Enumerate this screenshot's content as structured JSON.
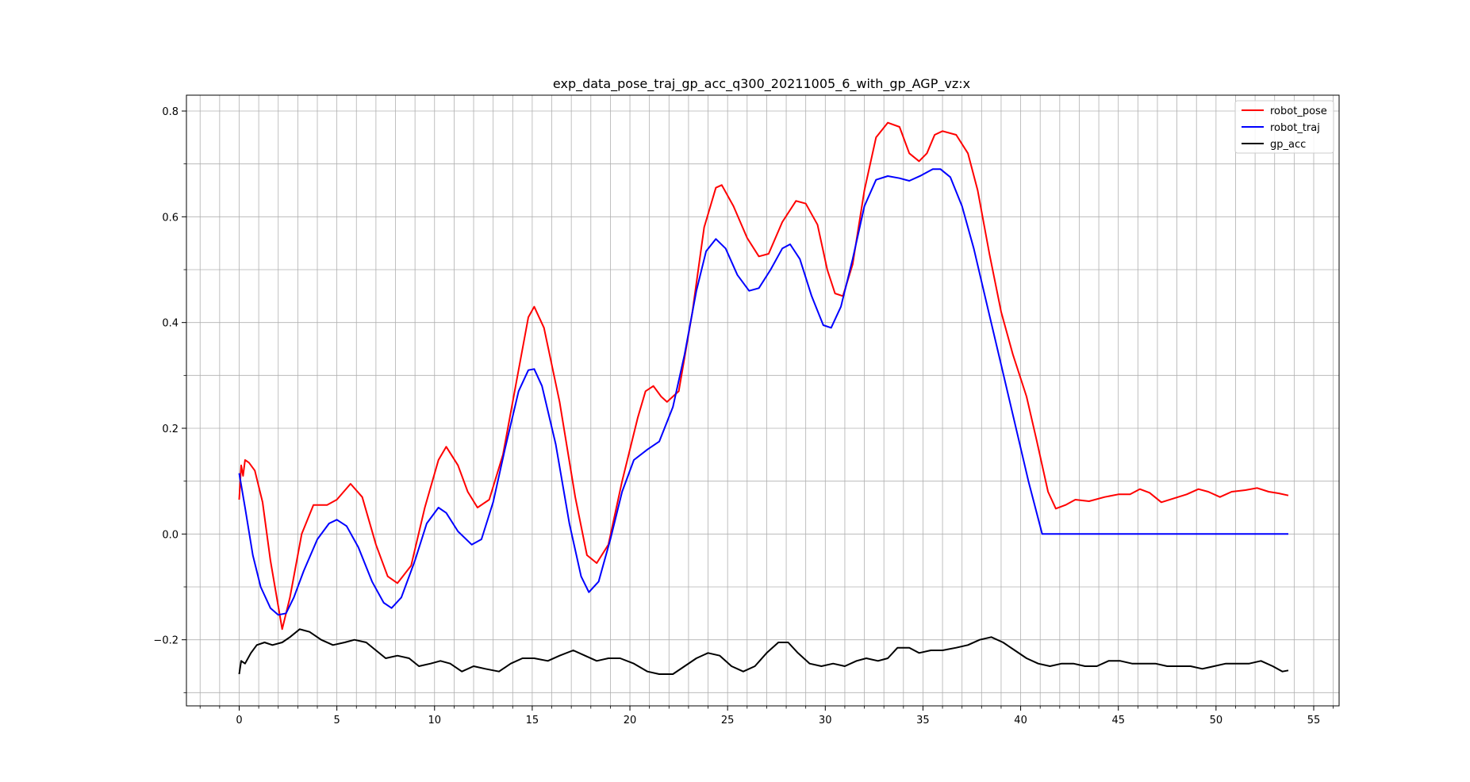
{
  "chart_data": {
    "type": "line",
    "title": "exp_data_pose_traj_gp_acc_q300_20211005_6_with_gp_AGP_vz:x",
    "xlabel": "",
    "ylabel": "",
    "xlim": [
      -2.7,
      56.3
    ],
    "ylim": [
      -0.325,
      0.83
    ],
    "x_ticks": [
      0,
      5,
      10,
      15,
      20,
      25,
      30,
      35,
      40,
      45,
      50,
      55
    ],
    "x_tick_labels": [
      "0",
      "5",
      "10",
      "15",
      "20",
      "25",
      "30",
      "35",
      "40",
      "45",
      "50",
      "55"
    ],
    "x_minor_ticks": [
      -2,
      -1,
      1,
      2,
      3,
      4,
      6,
      7,
      8,
      9,
      11,
      12,
      13,
      14,
      16,
      17,
      18,
      19,
      21,
      22,
      23,
      24,
      26,
      27,
      28,
      29,
      31,
      32,
      33,
      34,
      36,
      37,
      38,
      39,
      41,
      42,
      43,
      44,
      46,
      47,
      48,
      49,
      51,
      52,
      53,
      54,
      56
    ],
    "y_ticks": [
      -0.2,
      0.0,
      0.2,
      0.4,
      0.6,
      0.8
    ],
    "y_tick_labels": [
      "−0.2",
      "0.0",
      "0.2",
      "0.4",
      "0.6",
      "0.8"
    ],
    "y_minor_ticks": [
      -0.3,
      -0.1,
      0.1,
      0.3,
      0.5,
      0.7
    ],
    "grid": true,
    "legend_position": "top-right",
    "series": [
      {
        "name": "robot_pose",
        "color": "#ff0000",
        "points": [
          [
            0,
            0.065
          ],
          [
            0.1,
            0.13
          ],
          [
            0.2,
            0.11
          ],
          [
            0.3,
            0.14
          ],
          [
            0.5,
            0.135
          ],
          [
            0.8,
            0.12
          ],
          [
            1.2,
            0.06
          ],
          [
            1.6,
            -0.05
          ],
          [
            2.2,
            -0.18
          ],
          [
            2.6,
            -0.12
          ],
          [
            3.2,
            0.0
          ],
          [
            3.8,
            0.055
          ],
          [
            4.5,
            0.055
          ],
          [
            5.0,
            0.065
          ],
          [
            5.7,
            0.095
          ],
          [
            6.3,
            0.07
          ],
          [
            7.0,
            -0.02
          ],
          [
            7.6,
            -0.08
          ],
          [
            8.1,
            -0.093
          ],
          [
            8.8,
            -0.06
          ],
          [
            9.5,
            0.05
          ],
          [
            10.2,
            0.14
          ],
          [
            10.6,
            0.165
          ],
          [
            11.2,
            0.13
          ],
          [
            11.7,
            0.08
          ],
          [
            12.2,
            0.05
          ],
          [
            12.8,
            0.065
          ],
          [
            13.5,
            0.15
          ],
          [
            14.2,
            0.29
          ],
          [
            14.8,
            0.41
          ],
          [
            15.1,
            0.43
          ],
          [
            15.6,
            0.39
          ],
          [
            16.4,
            0.25
          ],
          [
            17.2,
            0.07
          ],
          [
            17.8,
            -0.04
          ],
          [
            18.3,
            -0.055
          ],
          [
            18.9,
            -0.02
          ],
          [
            19.6,
            0.1
          ],
          [
            20.4,
            0.22
          ],
          [
            20.8,
            0.27
          ],
          [
            21.2,
            0.28
          ],
          [
            21.6,
            0.26
          ],
          [
            21.9,
            0.25
          ],
          [
            22.5,
            0.27
          ],
          [
            23.2,
            0.42
          ],
          [
            23.8,
            0.58
          ],
          [
            24.4,
            0.655
          ],
          [
            24.7,
            0.66
          ],
          [
            25.3,
            0.62
          ],
          [
            26.0,
            0.56
          ],
          [
            26.6,
            0.525
          ],
          [
            27.1,
            0.53
          ],
          [
            27.8,
            0.59
          ],
          [
            28.5,
            0.63
          ],
          [
            29.0,
            0.625
          ],
          [
            29.6,
            0.585
          ],
          [
            30.1,
            0.5
          ],
          [
            30.5,
            0.455
          ],
          [
            30.9,
            0.45
          ],
          [
            31.4,
            0.51
          ],
          [
            32.0,
            0.65
          ],
          [
            32.6,
            0.75
          ],
          [
            33.2,
            0.778
          ],
          [
            33.8,
            0.77
          ],
          [
            34.3,
            0.72
          ],
          [
            34.8,
            0.705
          ],
          [
            35.2,
            0.72
          ],
          [
            35.6,
            0.755
          ],
          [
            36.0,
            0.762
          ],
          [
            36.7,
            0.755
          ],
          [
            37.3,
            0.72
          ],
          [
            37.8,
            0.65
          ],
          [
            38.4,
            0.53
          ],
          [
            39.0,
            0.42
          ],
          [
            39.6,
            0.34
          ],
          [
            40.3,
            0.26
          ],
          [
            40.8,
            0.18
          ],
          [
            41.4,
            0.08
          ],
          [
            41.8,
            0.048
          ],
          [
            42.3,
            0.055
          ],
          [
            42.8,
            0.065
          ],
          [
            43.5,
            0.062
          ],
          [
            44.3,
            0.07
          ],
          [
            45.0,
            0.075
          ],
          [
            45.6,
            0.075
          ],
          [
            46.1,
            0.085
          ],
          [
            46.6,
            0.078
          ],
          [
            47.2,
            0.06
          ],
          [
            47.8,
            0.067
          ],
          [
            48.5,
            0.075
          ],
          [
            49.1,
            0.085
          ],
          [
            49.6,
            0.08
          ],
          [
            50.2,
            0.07
          ],
          [
            50.8,
            0.08
          ],
          [
            51.5,
            0.083
          ],
          [
            52.1,
            0.087
          ],
          [
            52.7,
            0.08
          ],
          [
            53.2,
            0.077
          ],
          [
            53.7,
            0.073
          ]
        ]
      },
      {
        "name": "robot_traj",
        "color": "#0000ff",
        "points": [
          [
            0,
            0.115
          ],
          [
            0.3,
            0.05
          ],
          [
            0.7,
            -0.04
          ],
          [
            1.1,
            -0.1
          ],
          [
            1.6,
            -0.14
          ],
          [
            2.0,
            -0.153
          ],
          [
            2.4,
            -0.15
          ],
          [
            2.8,
            -0.12
          ],
          [
            3.3,
            -0.07
          ],
          [
            4.0,
            -0.01
          ],
          [
            4.6,
            0.02
          ],
          [
            5.0,
            0.027
          ],
          [
            5.5,
            0.015
          ],
          [
            6.1,
            -0.025
          ],
          [
            6.8,
            -0.09
          ],
          [
            7.4,
            -0.13
          ],
          [
            7.8,
            -0.14
          ],
          [
            8.3,
            -0.12
          ],
          [
            9.0,
            -0.05
          ],
          [
            9.6,
            0.02
          ],
          [
            10.2,
            0.05
          ],
          [
            10.6,
            0.04
          ],
          [
            11.2,
            0.005
          ],
          [
            11.9,
            -0.02
          ],
          [
            12.4,
            -0.01
          ],
          [
            13.0,
            0.06
          ],
          [
            13.6,
            0.16
          ],
          [
            14.3,
            0.27
          ],
          [
            14.8,
            0.31
          ],
          [
            15.1,
            0.312
          ],
          [
            15.5,
            0.28
          ],
          [
            16.2,
            0.17
          ],
          [
            16.9,
            0.02
          ],
          [
            17.5,
            -0.08
          ],
          [
            17.9,
            -0.11
          ],
          [
            18.4,
            -0.09
          ],
          [
            19.0,
            -0.01
          ],
          [
            19.6,
            0.08
          ],
          [
            20.2,
            0.14
          ],
          [
            20.9,
            0.16
          ],
          [
            21.5,
            0.175
          ],
          [
            22.2,
            0.24
          ],
          [
            22.8,
            0.34
          ],
          [
            23.4,
            0.46
          ],
          [
            23.9,
            0.535
          ],
          [
            24.4,
            0.558
          ],
          [
            24.9,
            0.54
          ],
          [
            25.5,
            0.49
          ],
          [
            26.1,
            0.46
          ],
          [
            26.6,
            0.465
          ],
          [
            27.2,
            0.5
          ],
          [
            27.8,
            0.54
          ],
          [
            28.2,
            0.548
          ],
          [
            28.7,
            0.52
          ],
          [
            29.3,
            0.45
          ],
          [
            29.9,
            0.395
          ],
          [
            30.3,
            0.39
          ],
          [
            30.8,
            0.43
          ],
          [
            31.4,
            0.52
          ],
          [
            32.0,
            0.62
          ],
          [
            32.6,
            0.67
          ],
          [
            33.2,
            0.677
          ],
          [
            33.8,
            0.673
          ],
          [
            34.3,
            0.668
          ],
          [
            34.9,
            0.678
          ],
          [
            35.5,
            0.69
          ],
          [
            35.9,
            0.69
          ],
          [
            36.4,
            0.675
          ],
          [
            37.0,
            0.62
          ],
          [
            37.6,
            0.54
          ],
          [
            38.3,
            0.43
          ],
          [
            39.0,
            0.32
          ],
          [
            39.7,
            0.21
          ],
          [
            40.4,
            0.1
          ],
          [
            41.1,
            0.0
          ],
          [
            45.0,
            0.0
          ],
          [
            50.0,
            0.0
          ],
          [
            53.7,
            0.0
          ]
        ]
      },
      {
        "name": "gp_acc",
        "color": "#000000",
        "points": [
          [
            0,
            -0.265
          ],
          [
            0.1,
            -0.24
          ],
          [
            0.3,
            -0.245
          ],
          [
            0.6,
            -0.225
          ],
          [
            0.9,
            -0.21
          ],
          [
            1.3,
            -0.205
          ],
          [
            1.7,
            -0.21
          ],
          [
            2.2,
            -0.205
          ],
          [
            2.6,
            -0.195
          ],
          [
            3.1,
            -0.18
          ],
          [
            3.6,
            -0.185
          ],
          [
            4.2,
            -0.2
          ],
          [
            4.8,
            -0.21
          ],
          [
            5.4,
            -0.205
          ],
          [
            5.9,
            -0.2
          ],
          [
            6.5,
            -0.205
          ],
          [
            7.0,
            -0.22
          ],
          [
            7.5,
            -0.235
          ],
          [
            8.1,
            -0.23
          ],
          [
            8.7,
            -0.235
          ],
          [
            9.2,
            -0.25
          ],
          [
            9.8,
            -0.245
          ],
          [
            10.3,
            -0.24
          ],
          [
            10.8,
            -0.245
          ],
          [
            11.4,
            -0.26
          ],
          [
            12.0,
            -0.25
          ],
          [
            12.6,
            -0.255
          ],
          [
            13.3,
            -0.26
          ],
          [
            13.9,
            -0.245
          ],
          [
            14.5,
            -0.235
          ],
          [
            15.1,
            -0.235
          ],
          [
            15.8,
            -0.24
          ],
          [
            16.4,
            -0.23
          ],
          [
            17.1,
            -0.22
          ],
          [
            17.7,
            -0.23
          ],
          [
            18.3,
            -0.24
          ],
          [
            18.9,
            -0.235
          ],
          [
            19.5,
            -0.235
          ],
          [
            20.2,
            -0.245
          ],
          [
            20.9,
            -0.26
          ],
          [
            21.5,
            -0.265
          ],
          [
            22.2,
            -0.265
          ],
          [
            22.8,
            -0.25
          ],
          [
            23.4,
            -0.235
          ],
          [
            24.0,
            -0.225
          ],
          [
            24.6,
            -0.23
          ],
          [
            25.2,
            -0.25
          ],
          [
            25.8,
            -0.26
          ],
          [
            26.4,
            -0.25
          ],
          [
            27.0,
            -0.225
          ],
          [
            27.6,
            -0.205
          ],
          [
            28.1,
            -0.205
          ],
          [
            28.6,
            -0.225
          ],
          [
            29.2,
            -0.245
          ],
          [
            29.8,
            -0.25
          ],
          [
            30.4,
            -0.245
          ],
          [
            31.0,
            -0.25
          ],
          [
            31.6,
            -0.24
          ],
          [
            32.1,
            -0.235
          ],
          [
            32.7,
            -0.24
          ],
          [
            33.2,
            -0.235
          ],
          [
            33.7,
            -0.215
          ],
          [
            34.3,
            -0.215
          ],
          [
            34.8,
            -0.225
          ],
          [
            35.4,
            -0.22
          ],
          [
            36.0,
            -0.22
          ],
          [
            36.7,
            -0.215
          ],
          [
            37.3,
            -0.21
          ],
          [
            37.9,
            -0.2
          ],
          [
            38.5,
            -0.195
          ],
          [
            39.1,
            -0.205
          ],
          [
            39.7,
            -0.22
          ],
          [
            40.3,
            -0.235
          ],
          [
            40.9,
            -0.245
          ],
          [
            41.5,
            -0.25
          ],
          [
            42.1,
            -0.245
          ],
          [
            42.7,
            -0.245
          ],
          [
            43.3,
            -0.25
          ],
          [
            43.9,
            -0.25
          ],
          [
            44.5,
            -0.24
          ],
          [
            45.1,
            -0.24
          ],
          [
            45.7,
            -0.245
          ],
          [
            46.3,
            -0.245
          ],
          [
            46.9,
            -0.245
          ],
          [
            47.5,
            -0.25
          ],
          [
            48.1,
            -0.25
          ],
          [
            48.7,
            -0.25
          ],
          [
            49.3,
            -0.255
          ],
          [
            49.9,
            -0.25
          ],
          [
            50.5,
            -0.245
          ],
          [
            51.1,
            -0.245
          ],
          [
            51.7,
            -0.245
          ],
          [
            52.3,
            -0.24
          ],
          [
            52.9,
            -0.25
          ],
          [
            53.4,
            -0.26
          ],
          [
            53.7,
            -0.258
          ]
        ]
      }
    ]
  }
}
